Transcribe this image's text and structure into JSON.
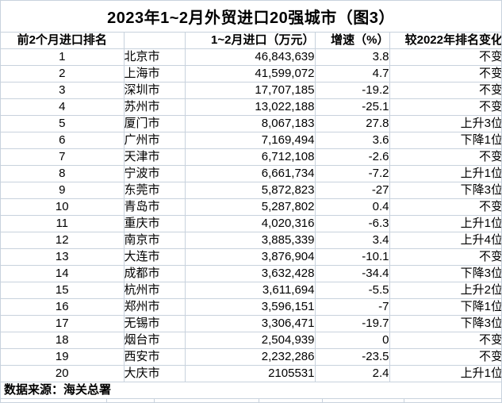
{
  "title": "2023年1~2月外贸进口20强城市（图3）",
  "source_note": "数据来源：海关总署",
  "colors": {
    "background": "#ffffff",
    "gridline": "#c8d2dd",
    "text": "#000000"
  },
  "chart_data": {
    "type": "table",
    "title": "2023年1~2月外贸进口20强城市（图3）",
    "columns": [
      "前2个月进口排名",
      "",
      "1~2月进口（万元）",
      "增速（%）",
      "较2022年排名变化"
    ],
    "rows": [
      {
        "rank": "1",
        "city": "北京市",
        "value": "46,843,639",
        "growth": "3.8",
        "change": "不变"
      },
      {
        "rank": "2",
        "city": "上海市",
        "value": "41,599,072",
        "growth": "4.7",
        "change": "不变"
      },
      {
        "rank": "3",
        "city": "深圳市",
        "value": "17,707,185",
        "growth": "-19.2",
        "change": "不变"
      },
      {
        "rank": "4",
        "city": "苏州市",
        "value": "13,022,188",
        "growth": "-25.1",
        "change": "不变"
      },
      {
        "rank": "5",
        "city": "厦门市",
        "value": "8,067,183",
        "growth": "27.8",
        "change": "上升3位"
      },
      {
        "rank": "6",
        "city": "广州市",
        "value": "7,169,494",
        "growth": "3.6",
        "change": "下降1位"
      },
      {
        "rank": "7",
        "city": "天津市",
        "value": "6,712,108",
        "growth": "-2.6",
        "change": "不变"
      },
      {
        "rank": "8",
        "city": "宁波市",
        "value": "6,661,734",
        "growth": "-7.2",
        "change": "上升1位"
      },
      {
        "rank": "9",
        "city": "东莞市",
        "value": "5,872,823",
        "growth": "-27",
        "change": "下降3位"
      },
      {
        "rank": "10",
        "city": "青岛市",
        "value": "5,287,802",
        "growth": "0.4",
        "change": "不变"
      },
      {
        "rank": "11",
        "city": "重庆市",
        "value": "4,020,316",
        "growth": "-6.3",
        "change": "上升1位"
      },
      {
        "rank": "12",
        "city": "南京市",
        "value": "3,885,339",
        "growth": "3.4",
        "change": "上升4位"
      },
      {
        "rank": "13",
        "city": "大连市",
        "value": "3,876,904",
        "growth": "-10.1",
        "change": "不变"
      },
      {
        "rank": "14",
        "city": "成都市",
        "value": "3,632,428",
        "growth": "-34.4",
        "change": "下降3位"
      },
      {
        "rank": "15",
        "city": "杭州市",
        "value": "3,611,694",
        "growth": "-5.5",
        "change": "上升2位"
      },
      {
        "rank": "16",
        "city": "郑州市",
        "value": "3,596,151",
        "growth": "-7",
        "change": "下降1位"
      },
      {
        "rank": "17",
        "city": "无锡市",
        "value": "3,306,471",
        "growth": "-19.7",
        "change": "下降3位"
      },
      {
        "rank": "18",
        "city": "烟台市",
        "value": "2,504,939",
        "growth": "0",
        "change": "不变"
      },
      {
        "rank": "19",
        "city": "西安市",
        "value": "2,232,286",
        "growth": "-23.5",
        "change": "不变"
      },
      {
        "rank": "20",
        "city": "大庆市",
        "value": "2105531",
        "growth": "2.4",
        "change": "上升1位"
      }
    ],
    "source": "数据来源：海关总署",
    "layout": {
      "grid": true,
      "header_bold": true
    }
  }
}
